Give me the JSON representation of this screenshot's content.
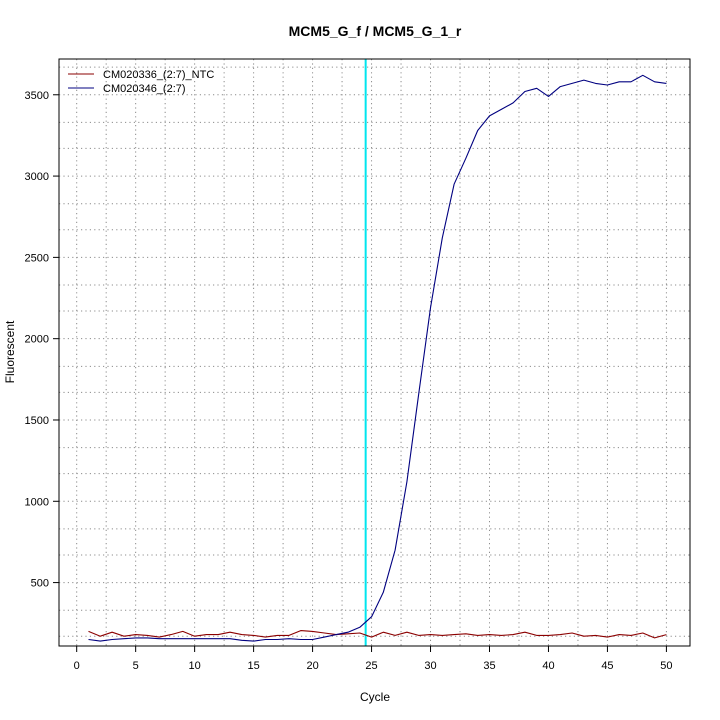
{
  "chart_data": {
    "type": "line",
    "title": "MCM5_G_f / MCM5_G_1_r",
    "xlabel": "Cycle",
    "ylabel": "Fluorescent",
    "xlim": [
      -1.5,
      52.0
    ],
    "ylim": [
      110,
      3720
    ],
    "x_ticks": [
      0,
      5,
      10,
      15,
      20,
      25,
      30,
      35,
      40,
      45,
      50
    ],
    "x_tick_labels": [
      "0",
      "5",
      "10",
      "15",
      "20",
      "25",
      "30",
      "35",
      "40",
      "45",
      "50"
    ],
    "y_ticks": [
      500,
      1000,
      1500,
      2000,
      2500,
      3000,
      3500
    ],
    "y_tick_labels": [
      "500",
      "1000",
      "1500",
      "2000",
      "2500",
      "3000",
      "3500"
    ],
    "x_grid_minor": [
      2.5,
      7.5,
      12.5,
      17.5,
      22.5,
      27.5,
      32.5,
      37.5,
      42.5,
      47.5
    ],
    "y_grid": [
      170,
      330,
      500,
      670,
      830,
      1000,
      1170,
      1330,
      1500,
      1670,
      1830,
      2000,
      2170,
      2330,
      2500,
      2670,
      2830,
      3000,
      3170,
      3330,
      3500,
      3670
    ],
    "grid": true,
    "legend_position": "top-left",
    "threshold_x": 24.5,
    "threshold_color": "#00e5ee",
    "x": [
      1,
      2,
      3,
      4,
      5,
      6,
      7,
      8,
      9,
      10,
      11,
      12,
      13,
      14,
      15,
      16,
      17,
      18,
      19,
      20,
      21,
      22,
      23,
      24,
      25,
      26,
      27,
      28,
      29,
      30,
      31,
      32,
      33,
      34,
      35,
      36,
      37,
      38,
      39,
      40,
      41,
      42,
      43,
      44,
      45,
      46,
      47,
      48,
      49,
      50
    ],
    "series": [
      {
        "name": "CM020336_(2:7)_NTC",
        "color": "#8b0000",
        "values": [
          200,
          170,
          195,
          170,
          180,
          175,
          165,
          180,
          200,
          170,
          180,
          180,
          195,
          180,
          175,
          165,
          175,
          175,
          205,
          200,
          190,
          180,
          185,
          190,
          165,
          195,
          175,
          195,
          175,
          180,
          175,
          180,
          185,
          175,
          180,
          175,
          180,
          195,
          175,
          175,
          180,
          190,
          170,
          175,
          165,
          180,
          175,
          190,
          160,
          180
        ]
      },
      {
        "name": "CM020346_(2:7)",
        "color": "#000080",
        "values": [
          150,
          140,
          150,
          155,
          160,
          160,
          155,
          155,
          155,
          155,
          155,
          155,
          155,
          145,
          140,
          150,
          150,
          155,
          150,
          150,
          165,
          180,
          195,
          225,
          290,
          440,
          700,
          1120,
          1660,
          2190,
          2620,
          2950,
          3110,
          3280,
          3370,
          3410,
          3450,
          3520,
          3540,
          3490,
          3550,
          3570,
          3590,
          3570,
          3560,
          3580,
          3580,
          3620,
          3580,
          3570
        ]
      }
    ]
  }
}
